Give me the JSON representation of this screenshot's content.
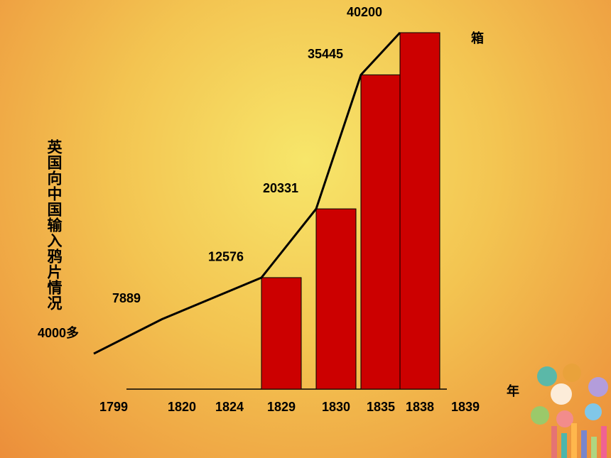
{
  "chart_data": {
    "type": "bar",
    "y_label": "英国向中国输入鸦片情况",
    "unit": "箱",
    "x_label": "年",
    "categories": [
      "1799",
      "1820",
      "1824",
      "1829",
      "1830",
      "1835",
      "1838",
      "1839"
    ],
    "bars": {
      "x": [
        "1829",
        "1830",
        "1835",
        "1838"
      ],
      "values": [
        12576,
        20331,
        35445,
        40200
      ],
      "color": "#cc0000"
    },
    "line": {
      "x": [
        "1799",
        "1820",
        "1829",
        "1830",
        "1835",
        "1838"
      ],
      "values": [
        4000,
        7889,
        12576,
        20331,
        35445,
        40200
      ],
      "value_labels": [
        "4000多",
        "7889",
        "12576",
        "20331",
        "35445",
        "40200"
      ],
      "color": "#000000"
    }
  }
}
